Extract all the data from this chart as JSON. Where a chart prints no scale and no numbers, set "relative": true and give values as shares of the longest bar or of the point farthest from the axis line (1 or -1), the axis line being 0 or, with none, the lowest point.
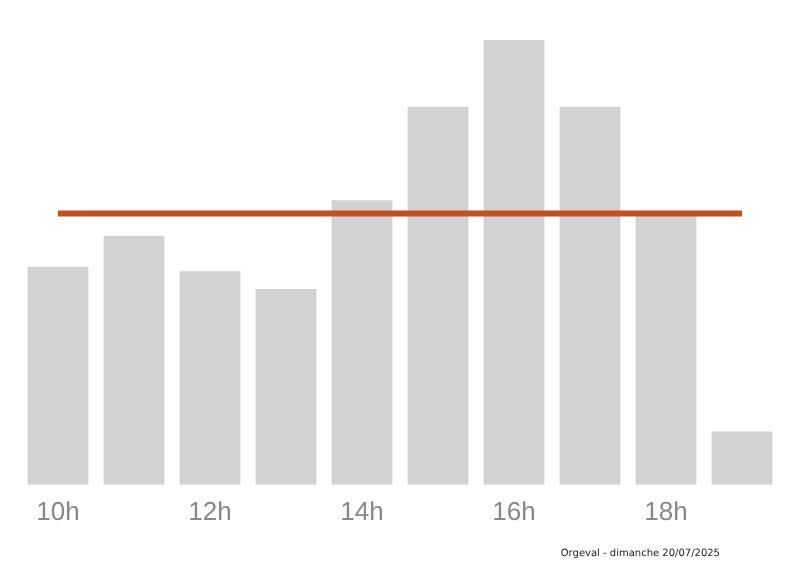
{
  "chart_data": {
    "type": "bar",
    "relative": true,
    "categories": [
      "10h",
      null,
      "12h",
      null,
      "14h",
      null,
      "16h",
      null,
      "18h",
      null
    ],
    "values": [
      0.49,
      0.56,
      0.48,
      0.44,
      0.64,
      0.85,
      1,
      0.85,
      0.61,
      0.12
    ],
    "color": "#d3d2d2",
    "ref_lines": [
      {
        "axis": "y",
        "value": 0.61,
        "color": "#c0501f",
        "line_style": "solid"
      }
    ],
    "annotations": [
      "Orgeval - dimanche 20/07/2025"
    ],
    "grid": false,
    "legend": false
  }
}
